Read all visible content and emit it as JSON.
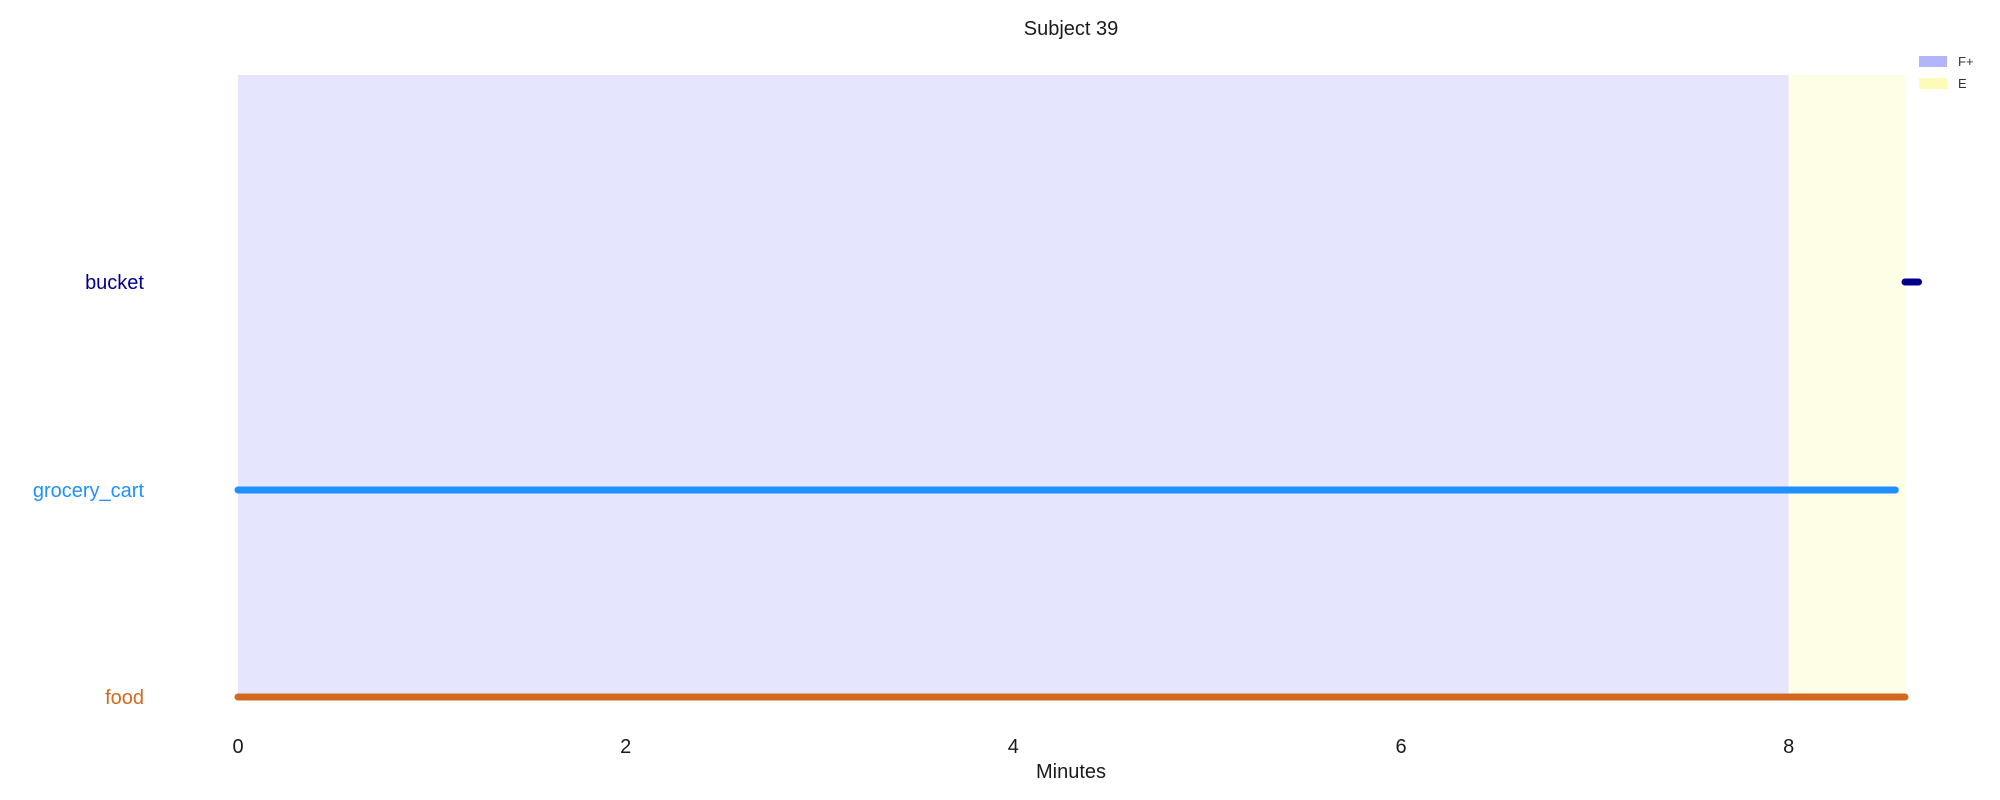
{
  "chart_data": {
    "type": "timeline",
    "title": "Subject 39",
    "xlabel": "Minutes",
    "xlim": [
      0,
      8.6
    ],
    "x_ticks": [
      0,
      2,
      4,
      6,
      8
    ],
    "x_tick_labels": [
      "0",
      "2",
      "4",
      "6",
      "8"
    ],
    "grid": false,
    "legend_position": "top-right",
    "phases": [
      {
        "label": "F+",
        "start": 0,
        "end": 8.0,
        "color": "#e5e6fe",
        "legend_color": "#b3b5fb"
      },
      {
        "label": "E",
        "start": 8.0,
        "end": 8.6,
        "color": "#fefee6",
        "legend_color": "#fcfcb6"
      }
    ],
    "rows": [
      {
        "label": "bucket",
        "color": "#00008b",
        "segments": [
          [
            8.6,
            8.67
          ]
        ]
      },
      {
        "label": "grocery_cart",
        "color": "#1e90ff",
        "segments": [
          [
            0,
            8.55
          ]
        ]
      },
      {
        "label": "food",
        "color": "#d2691e",
        "segments": [
          [
            0,
            8.6
          ]
        ]
      }
    ]
  }
}
